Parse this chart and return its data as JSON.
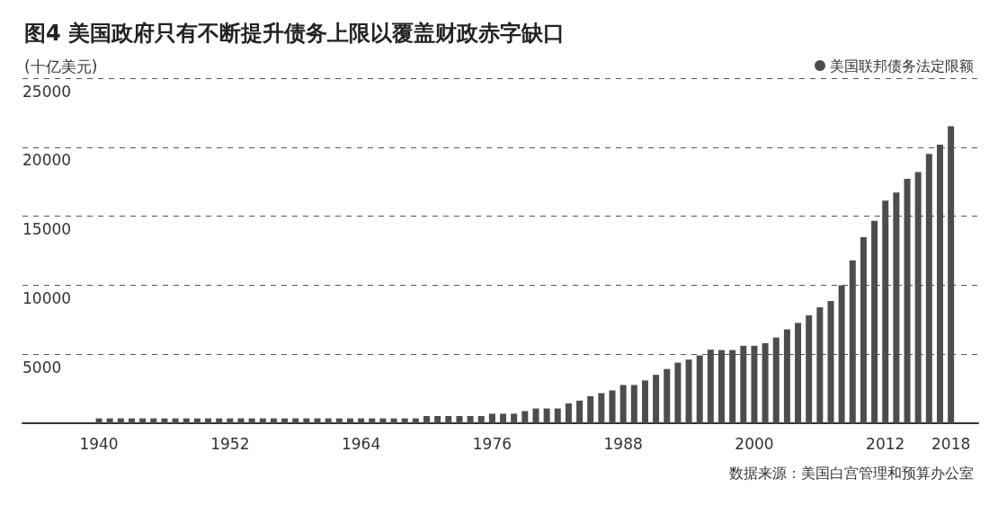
{
  "chart_data": {
    "type": "bar",
    "title": "图4 美国政府只有不断提升债务上限以覆盖财政赤字缺口",
    "ylabel": "(十亿美元)",
    "annotations": [
      "数据来源：美国白宫管理和预算办公室"
    ],
    "x": [
      1940,
      1941,
      1942,
      1943,
      1944,
      1945,
      1946,
      1947,
      1948,
      1949,
      1950,
      1951,
      1952,
      1953,
      1954,
      1955,
      1956,
      1957,
      1958,
      1959,
      1960,
      1961,
      1962,
      1963,
      1964,
      1965,
      1966,
      1967,
      1968,
      1969,
      1970,
      1971,
      1972,
      1973,
      1974,
      1975,
      1976,
      1977,
      1978,
      1979,
      1980,
      1981,
      1982,
      1983,
      1984,
      1985,
      1986,
      1987,
      1988,
      1989,
      1990,
      1991,
      1992,
      1993,
      1994,
      1995,
      1996,
      1997,
      1998,
      1999,
      2000,
      2001,
      2002,
      2003,
      2004,
      2005,
      2006,
      2007,
      2008,
      2009,
      2010,
      2011,
      2012,
      2013,
      2014,
      2015,
      2016,
      2017,
      2018
    ],
    "series": [
      {
        "name": "美国联邦债务法定限额",
        "color": "#4d4d4d",
        "values": [
          350,
          350,
          350,
          350,
          350,
          350,
          350,
          350,
          350,
          350,
          350,
          350,
          350,
          350,
          350,
          350,
          350,
          350,
          350,
          350,
          350,
          350,
          350,
          350,
          350,
          350,
          350,
          350,
          350,
          350,
          520,
          520,
          520,
          520,
          520,
          520,
          690,
          690,
          690,
          880,
          1070,
          1070,
          1070,
          1440,
          1640,
          1960,
          2180,
          2380,
          2770,
          2770,
          3100,
          3510,
          3930,
          4390,
          4610,
          4910,
          5330,
          5300,
          5300,
          5610,
          5610,
          5800,
          6210,
          6800,
          7270,
          7820,
          8400,
          8860,
          10000,
          11800,
          13470,
          14660,
          16130,
          16710,
          17710,
          18190,
          19510,
          20180,
          21520
        ]
      }
    ],
    "xlim": [
      1933,
      2020.5
    ],
    "xticks": [
      1940,
      1952,
      1964,
      1976,
      1988,
      2000,
      2012,
      2018
    ],
    "ylim": [
      0,
      25000
    ],
    "yticks": [
      {
        "value": 0,
        "label": null
      },
      5000,
      10000,
      15000,
      20000,
      25000
    ],
    "grid": "y",
    "legend": "top right"
  }
}
